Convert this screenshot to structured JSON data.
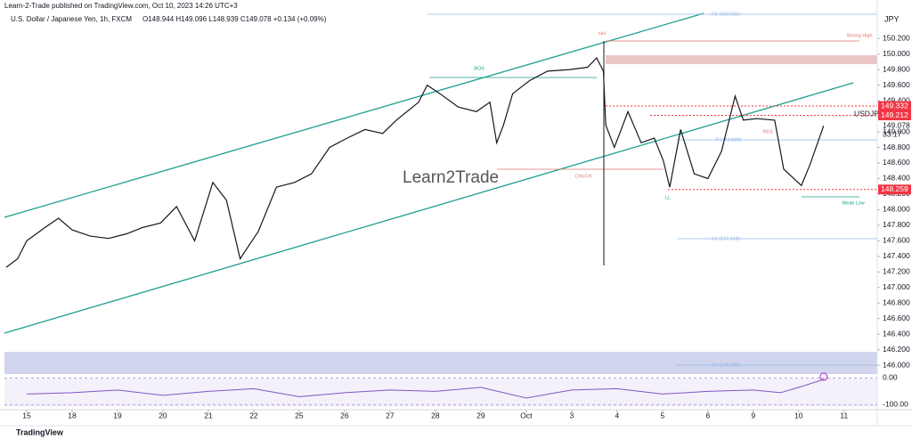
{
  "chart_data": {
    "type": "line",
    "header": "Learn-2-Trade published on TradingView.com, Oct 10, 2023 14:26 UTC+3",
    "title": "U.S. Dollar / Japanese Yen, 1h, FXCM",
    "ohlc_text": "O148.944 H149.096 L148.939 C149.078 +0.134 (+0.09%)",
    "currency": "JPY",
    "symbol": "USDJPY",
    "countdown": "33:17",
    "footer": "TradingView",
    "logo": "Learn2Trade",
    "x": [
      -0.45,
      -0.2,
      0,
      0.4,
      0.7,
      1,
      1.4,
      1.8,
      2.2,
      2.55,
      2.95,
      3.3,
      3.7,
      4.1,
      4.4,
      4.7,
      5.1,
      5.5,
      5.9,
      6.27,
      6.67,
      7.06,
      7.45,
      7.84,
      8.14,
      8.63,
      8.82,
      9.1,
      9.5,
      9.9,
      10.2,
      10.35,
      10.5,
      10.7,
      11.08,
      11.47,
      11.96,
      12.35,
      12.55,
      12.7,
      12.75,
      12.94,
      13.24,
      13.53,
      13.82,
      14.02,
      14.16,
      14.4,
      14.7,
      15.0,
      15.3,
      15.6,
      15.78,
      16.08,
      16.47,
      16.67,
      17.06,
      17.25,
      17.55
    ],
    "series": [
      {
        "name": "USDJPY",
        "color": "#131722",
        "values": [
          147.26,
          147.37,
          147.6,
          147.77,
          147.89,
          147.74,
          147.66,
          147.63,
          147.69,
          147.77,
          147.83,
          148.04,
          147.6,
          148.35,
          148.12,
          147.37,
          147.72,
          148.29,
          148.35,
          148.46,
          148.8,
          148.92,
          149.03,
          148.98,
          149.15,
          149.38,
          149.6,
          149.49,
          149.32,
          149.26,
          149.38,
          148.86,
          149.09,
          149.49,
          149.66,
          149.78,
          149.8,
          149.83,
          149.95,
          149.78,
          149.09,
          148.8,
          149.26,
          148.86,
          148.92,
          148.63,
          148.29,
          149.03,
          148.46,
          148.4,
          148.75,
          149.46,
          149.15,
          149.17,
          149.15,
          148.52,
          148.31,
          148.58,
          149.078
        ]
      }
    ],
    "price_labels": [
      {
        "value": 149.332,
        "color": "#f23645"
      },
      {
        "value": 149.212,
        "color": "#f23645"
      },
      {
        "value": 148.259,
        "color": "#f23645"
      }
    ],
    "annotations": [
      "BOS",
      "HH",
      "CHoCH",
      "LL",
      "Weak Low",
      "Strong High",
      "R1 (150.505)",
      "P (148.889)",
      "S1 (147.618)",
      "S2 (146.002)",
      "RES"
    ],
    "xlim": [
      -0.49,
      18.73
    ],
    "xticks": [
      {
        "value": 0,
        "label": "15"
      },
      {
        "value": 1,
        "label": "18"
      },
      {
        "value": 2,
        "label": "19"
      },
      {
        "value": 3,
        "label": "20"
      },
      {
        "value": 4,
        "label": "21"
      },
      {
        "value": 5,
        "label": "22"
      },
      {
        "value": 6,
        "label": "25"
      },
      {
        "value": 7,
        "label": "26"
      },
      {
        "value": 8,
        "label": "27"
      },
      {
        "value": 9,
        "label": "28"
      },
      {
        "value": 10,
        "label": "29"
      },
      {
        "value": 11,
        "label": "Oct"
      },
      {
        "value": 12,
        "label": "3"
      },
      {
        "value": 13,
        "label": "4"
      },
      {
        "value": 14,
        "label": "5"
      },
      {
        "value": 15,
        "label": "6"
      },
      {
        "value": 16,
        "label": "9"
      },
      {
        "value": 17,
        "label": "10"
      },
      {
        "value": 18,
        "label": "11"
      }
    ],
    "ylim": [
      145.83,
      150.58
    ],
    "yticks": [
      {
        "value": 150.2,
        "label": "150.200"
      },
      {
        "value": 150,
        "label": "150.000"
      },
      {
        "value": 149.8,
        "label": "149.800"
      },
      {
        "value": 149.6,
        "label": "149.600"
      },
      {
        "value": 149.4,
        "label": "149.400"
      },
      {
        "value": 149.2,
        "label": "149.200"
      },
      {
        "value": 149,
        "label": "149.000"
      },
      {
        "value": 148.8,
        "label": "148.800"
      },
      {
        "value": 148.6,
        "label": "148.600"
      },
      {
        "value": 148.4,
        "label": "148.400"
      },
      {
        "value": 148.2,
        "label": "148.200"
      },
      {
        "value": 148,
        "label": "148.000"
      },
      {
        "value": 147.8,
        "label": "147.800"
      },
      {
        "value": 147.6,
        "label": "147.600"
      },
      {
        "value": 147.4,
        "label": "147.400"
      },
      {
        "value": 147.2,
        "label": "147.200"
      },
      {
        "value": 147,
        "label": "147.000"
      },
      {
        "value": 146.8,
        "label": "146.800"
      },
      {
        "value": 146.6,
        "label": "146.600"
      },
      {
        "value": 146.4,
        "label": "146.400"
      },
      {
        "value": 146.2,
        "label": "146.200"
      },
      {
        "value": 146,
        "label": "146.000"
      }
    ],
    "rsi": {
      "name": "RSI",
      "color": "#7e57c2",
      "x": [
        0,
        1,
        2,
        3,
        4,
        5,
        6,
        7,
        8,
        9,
        10,
        11,
        12,
        13,
        14,
        15,
        16,
        16.6,
        17.1,
        17.55
      ],
      "values": [
        -60,
        -55,
        -45,
        -65,
        -50,
        -40,
        -70,
        -55,
        -45,
        -50,
        -35,
        -75,
        -45,
        -40,
        -60,
        -50,
        -45,
        -55,
        -30,
        -5
      ],
      "ylim": [
        -112,
        8
      ],
      "yticks": [
        {
          "value": 0,
          "label": "0.00"
        },
        {
          "value": -100,
          "label": "-100.00"
        }
      ]
    }
  }
}
